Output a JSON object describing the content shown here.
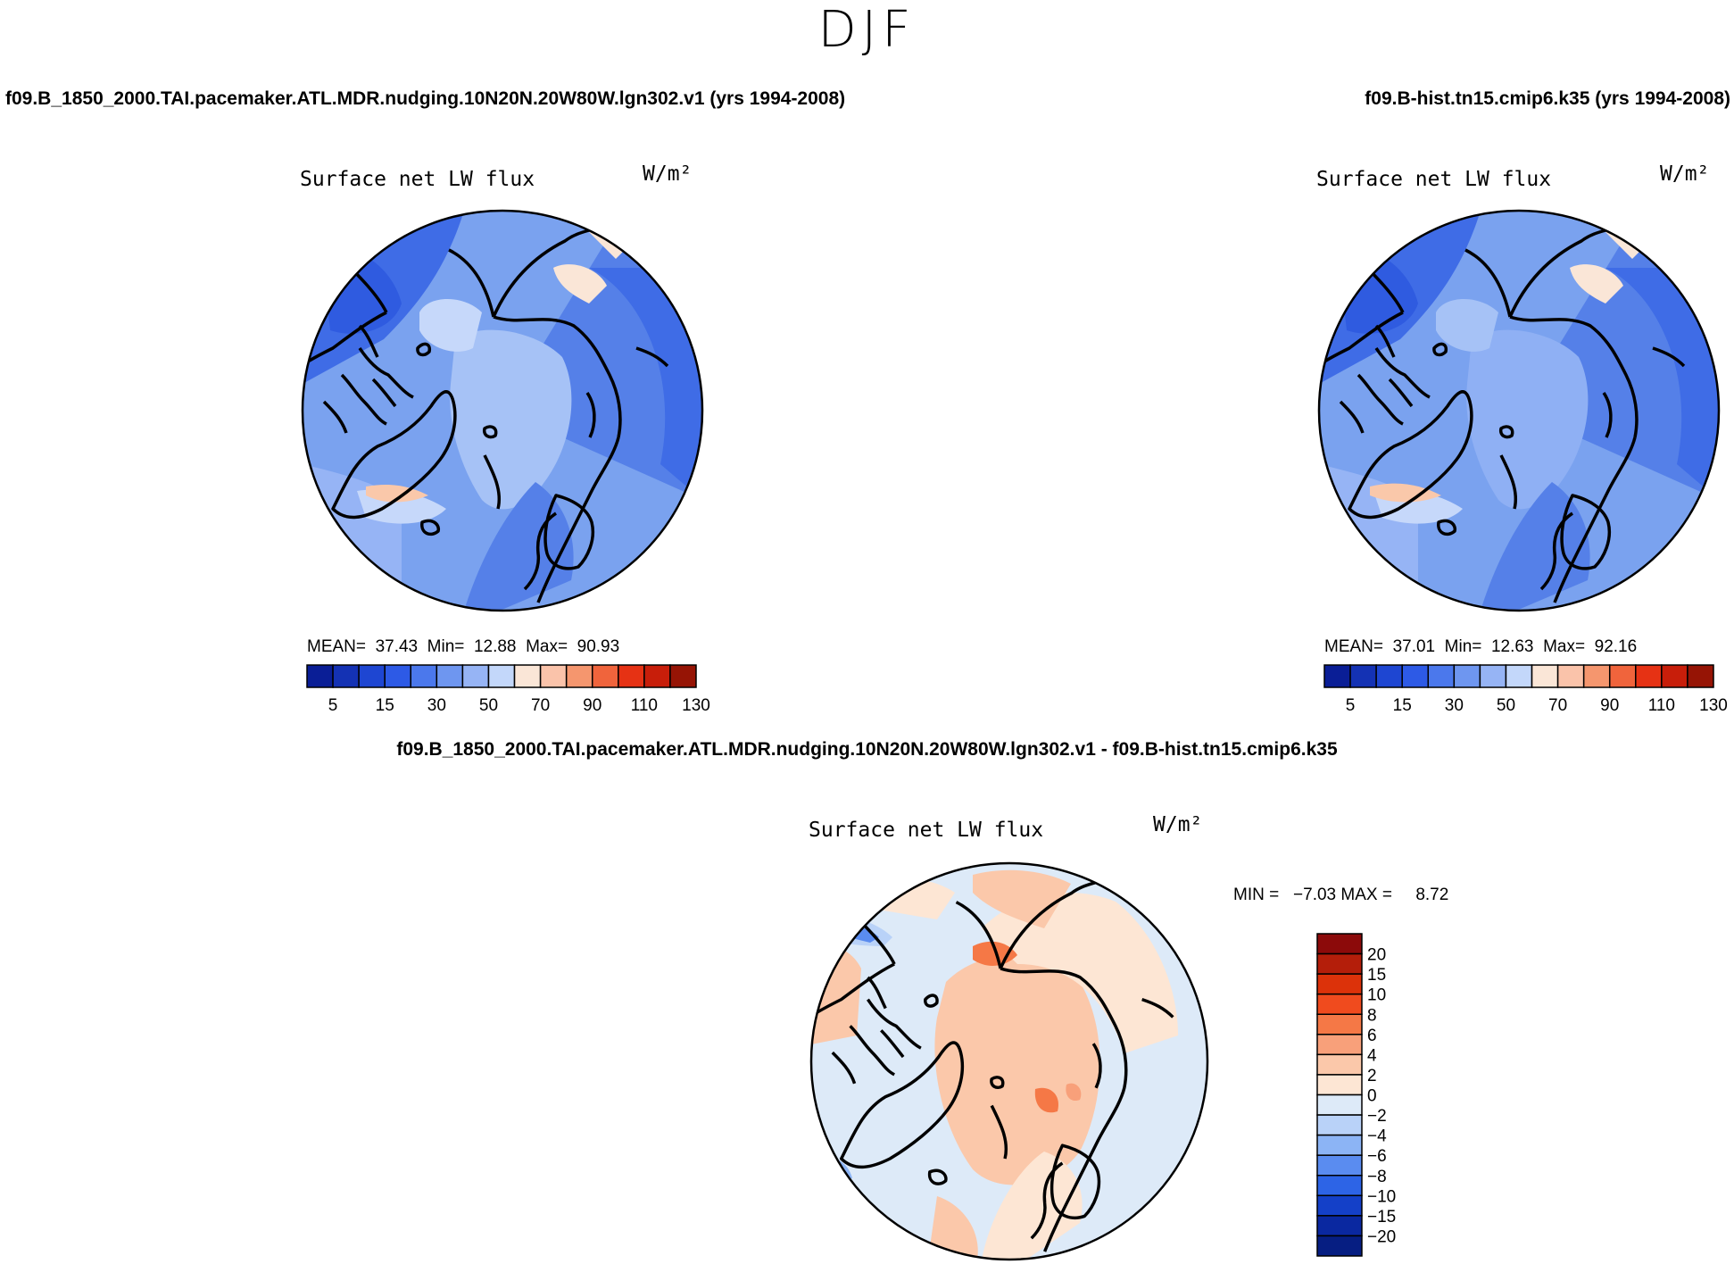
{
  "page": {
    "title": "DJF"
  },
  "panels": {
    "case1": {
      "case_label": "f09.B_1850_2000.TAI.pacemaker.ATL.MDR.nudging.10N20N.20W80W.lgn302.v1 (yrs 1994-2008)",
      "subtitle": "Surface net LW flux",
      "units": "W/m²",
      "stats_mean_label": "MEAN=",
      "stats_mean": "37.43",
      "stats_min_label": "Min=",
      "stats_min": "12.88",
      "stats_max_label": "Max=",
      "stats_max": "90.93"
    },
    "case2": {
      "case_label": "f09.B-hist.tn15.cmip6.k35 (yrs 1994-2008)",
      "subtitle": "Surface net LW flux",
      "units": "W/m²",
      "stats_mean_label": "MEAN=",
      "stats_mean": "37.01",
      "stats_min_label": "Min=",
      "stats_min": "12.63",
      "stats_max_label": "Max=",
      "stats_max": "92.16"
    },
    "diff": {
      "case_label": "f09.B_1850_2000.TAI.pacemaker.ATL.MDR.nudging.10N20N.20W80W.lgn302.v1 - f09.B-hist.tn15.cmip6.k35",
      "subtitle": "Surface net LW flux",
      "units": "W/m²",
      "minmax_text": "MIN =   −7.03 MAX =     8.72"
    }
  },
  "chart_data": [
    {
      "type": "heatmap",
      "projection": "north-polar-stereographic",
      "title": "Surface net LW flux",
      "units": "W/m²",
      "stats": {
        "mean": 37.43,
        "min": 12.88,
        "max": 90.93
      },
      "colorbar": {
        "orientation": "horizontal",
        "tick_labels": [
          "5",
          "15",
          "30",
          "50",
          "70",
          "90",
          "110",
          "130"
        ],
        "colors": [
          "#0a1e96",
          "#1432b4",
          "#1e46d2",
          "#2d5ae6",
          "#4b78ec",
          "#6e96f0",
          "#96b4f5",
          "#c3d7fa",
          "#fae6d7",
          "#fac3aa",
          "#f5966e",
          "#f0643c",
          "#e63214",
          "#c81e0a",
          "#961405"
        ]
      }
    },
    {
      "type": "heatmap",
      "projection": "north-polar-stereographic",
      "title": "Surface net LW flux",
      "units": "W/m²",
      "stats": {
        "mean": 37.01,
        "min": 12.63,
        "max": 92.16
      },
      "colorbar": {
        "orientation": "horizontal",
        "tick_labels": [
          "5",
          "15",
          "30",
          "50",
          "70",
          "90",
          "110",
          "130"
        ],
        "colors": [
          "#0a1e96",
          "#1432b4",
          "#1e46d2",
          "#2d5ae6",
          "#4b78ec",
          "#6e96f0",
          "#96b4f5",
          "#c3d7fa",
          "#fae6d7",
          "#fac3aa",
          "#f5966e",
          "#f0643c",
          "#e63214",
          "#c81e0a",
          "#961405"
        ]
      }
    },
    {
      "type": "heatmap",
      "projection": "north-polar-stereographic",
      "title": "Surface net LW flux",
      "units": "W/m²",
      "stats": {
        "min": -7.03,
        "max": 8.72
      },
      "colorbar": {
        "orientation": "vertical",
        "tick_labels": [
          "20",
          "15",
          "10",
          "8",
          "6",
          "4",
          "2",
          "0",
          "−2",
          "−4",
          "−6",
          "−8",
          "−10",
          "−15",
          "−20"
        ],
        "colors": [
          "#8c0a0a",
          "#b41e0a",
          "#dc320a",
          "#f04b1e",
          "#f57846",
          "#f8a07a",
          "#fbc8aa",
          "#fde6d4",
          "#ddeaf8",
          "#b9d2f8",
          "#8cb4f5",
          "#5a8cf0",
          "#2d64e6",
          "#1440c8",
          "#0a28a0",
          "#061e82"
        ]
      }
    }
  ]
}
